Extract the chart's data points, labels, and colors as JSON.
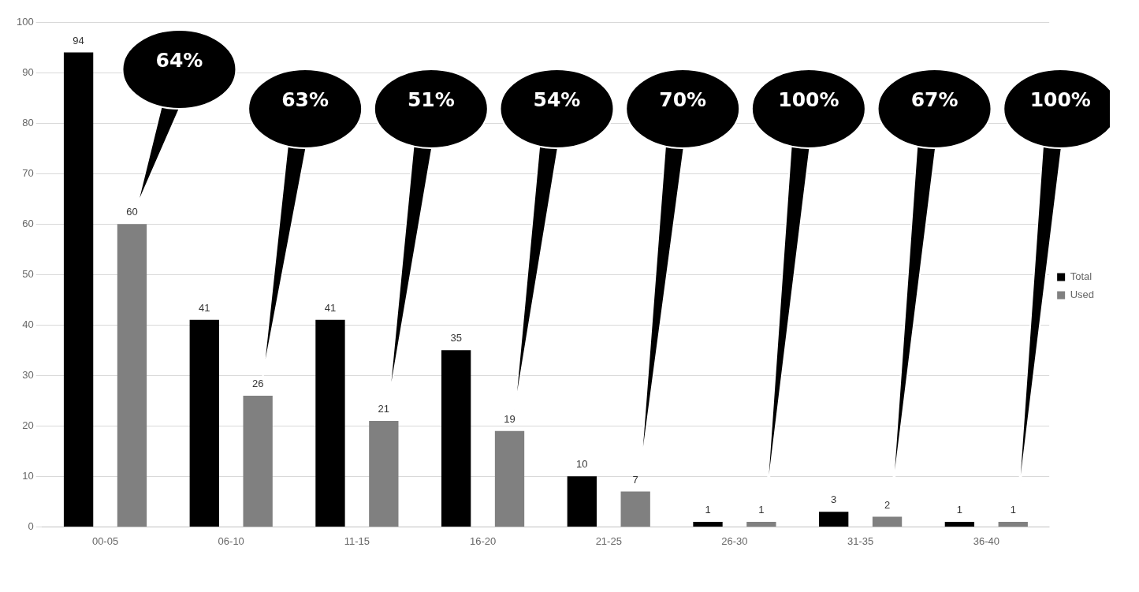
{
  "chart_data": {
    "type": "bar",
    "categories": [
      "00-05",
      "06-10",
      "11-15",
      "16-20",
      "21-25",
      "26-30",
      "31-35",
      "36-40"
    ],
    "series": [
      {
        "name": "Total",
        "color": "#000000",
        "values": [
          94,
          41,
          41,
          35,
          10,
          1,
          3,
          1
        ]
      },
      {
        "name": "Used",
        "color": "#808080",
        "values": [
          60,
          26,
          21,
          19,
          7,
          1,
          2,
          1
        ]
      }
    ],
    "ylim": [
      0,
      100
    ],
    "yticks": [
      0,
      10,
      20,
      30,
      40,
      50,
      60,
      70,
      80,
      90,
      100
    ],
    "grid": "y",
    "legend": "right",
    "data_labels": true,
    "annotations": [
      "64%",
      "63%",
      "51%",
      "54%",
      "70%",
      "100%",
      "67%",
      "100%"
    ]
  }
}
